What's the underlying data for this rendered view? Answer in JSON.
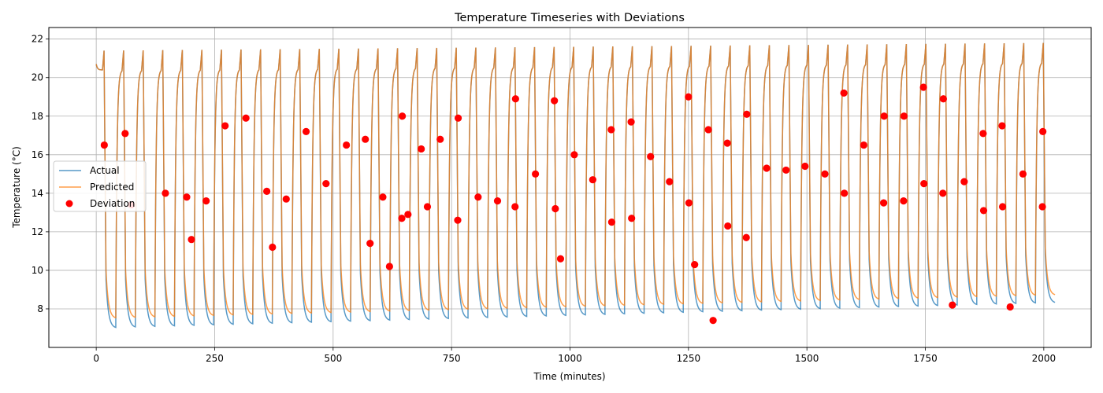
{
  "chart_data": {
    "type": "line",
    "title": "Temperature Timeseries with Deviations",
    "xlabel": "Time (minutes)",
    "ylabel": "Temperature (°C)",
    "xlim": [
      -100,
      2100
    ],
    "ylim": [
      6.0,
      22.6
    ],
    "xticks": [
      0,
      250,
      500,
      750,
      1000,
      1250,
      1500,
      1750,
      2000
    ],
    "yticks": [
      8,
      10,
      12,
      14,
      16,
      18,
      20,
      22
    ],
    "grid": true,
    "legend_position": "center-left",
    "cycle": {
      "period_minutes": 41.3,
      "count": 49,
      "peak_temperature_start": 21.4,
      "peak_temperature_end": 21.8,
      "actual_trough_start": 7.0,
      "actual_trough_end": 8.3,
      "predicted_trough_start": 7.5,
      "predicted_trough_end": 8.7
    },
    "series": [
      {
        "name": "Actual",
        "kind": "line",
        "color": "#1f77b4",
        "alpha": 0.75
      },
      {
        "name": "Predicted",
        "kind": "line",
        "color": "#ff7f0e",
        "alpha": 0.75
      },
      {
        "name": "Deviation",
        "kind": "scatter",
        "color": "#ff0000",
        "points": [
          [
            17,
            16.5
          ],
          [
            61,
            17.1
          ],
          [
            74,
            13.4
          ],
          [
            146,
            14.0
          ],
          [
            191,
            13.8
          ],
          [
            201,
            11.6
          ],
          [
            232,
            13.6
          ],
          [
            272,
            17.5
          ],
          [
            316,
            17.9
          ],
          [
            360,
            14.1
          ],
          [
            372,
            11.2
          ],
          [
            401,
            13.7
          ],
          [
            443,
            17.2
          ],
          [
            485,
            14.5
          ],
          [
            528,
            16.5
          ],
          [
            568,
            16.8
          ],
          [
            578,
            11.4
          ],
          [
            605,
            13.8
          ],
          [
            619,
            10.2
          ],
          [
            645,
            12.7
          ],
          [
            646,
            18.0
          ],
          [
            658,
            12.9
          ],
          [
            686,
            16.3
          ],
          [
            699,
            13.3
          ],
          [
            726,
            16.8
          ],
          [
            763,
            12.6
          ],
          [
            764,
            17.9
          ],
          [
            806,
            13.8
          ],
          [
            847,
            13.6
          ],
          [
            884,
            13.3
          ],
          [
            885,
            18.9
          ],
          [
            927,
            15.0
          ],
          [
            967,
            18.8
          ],
          [
            969,
            13.2
          ],
          [
            980,
            10.6
          ],
          [
            1009,
            16.0
          ],
          [
            1048,
            14.7
          ],
          [
            1087,
            17.3
          ],
          [
            1088,
            12.5
          ],
          [
            1129,
            17.7
          ],
          [
            1130,
            12.7
          ],
          [
            1170,
            15.9
          ],
          [
            1210,
            14.6
          ],
          [
            1250,
            19.0
          ],
          [
            1251,
            13.5
          ],
          [
            1263,
            10.3
          ],
          [
            1292,
            17.3
          ],
          [
            1302,
            7.4
          ],
          [
            1332,
            16.6
          ],
          [
            1333,
            12.3
          ],
          [
            1372,
            11.7
          ],
          [
            1373,
            18.1
          ],
          [
            1415,
            15.3
          ],
          [
            1456,
            15.2
          ],
          [
            1496,
            15.4
          ],
          [
            1538,
            15.0
          ],
          [
            1578,
            19.2
          ],
          [
            1579,
            14.0
          ],
          [
            1620,
            16.5
          ],
          [
            1662,
            13.5
          ],
          [
            1663,
            18.0
          ],
          [
            1704,
            13.6
          ],
          [
            1705,
            18.0
          ],
          [
            1746,
            19.5
          ],
          [
            1747,
            14.5
          ],
          [
            1787,
            14.0
          ],
          [
            1788,
            18.9
          ],
          [
            1807,
            8.2
          ],
          [
            1832,
            14.6
          ],
          [
            1872,
            17.1
          ],
          [
            1873,
            13.1
          ],
          [
            1912,
            17.5
          ],
          [
            1913,
            13.3
          ],
          [
            1929,
            8.1
          ],
          [
            1956,
            15.0
          ],
          [
            1997,
            13.3
          ],
          [
            1998,
            17.2
          ]
        ]
      }
    ]
  }
}
